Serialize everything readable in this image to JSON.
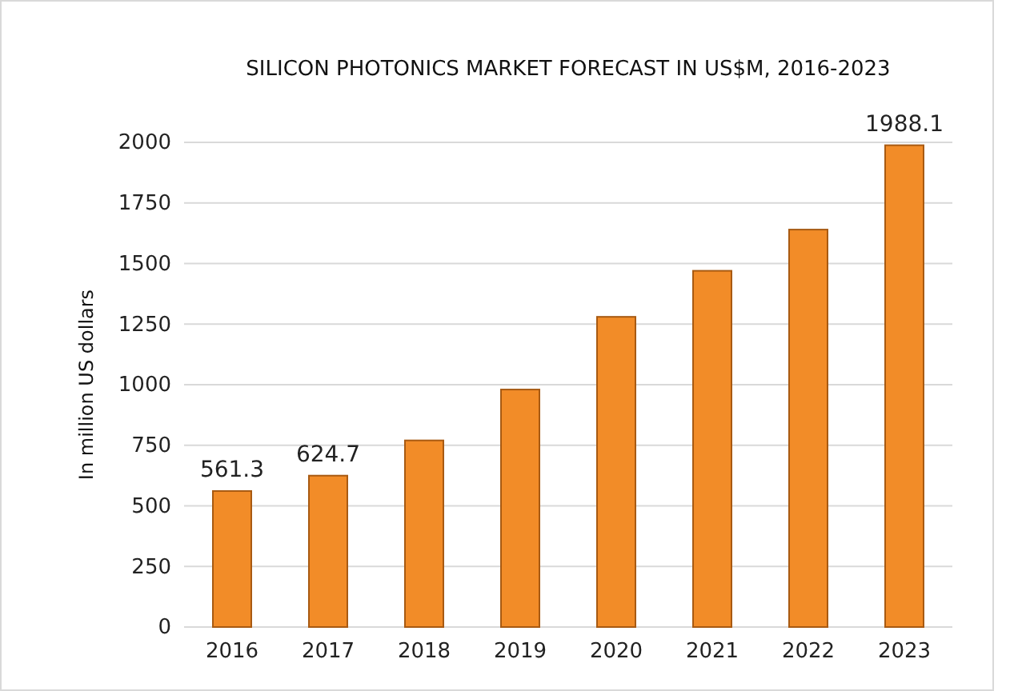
{
  "chart_data": {
    "type": "bar",
    "title": "SILICON PHOTONICS MARKET FORECAST IN US$M, 2016-2023",
    "ylabel": "In million US dollars",
    "categories": [
      "2016",
      "2017",
      "2018",
      "2019",
      "2020",
      "2021",
      "2022",
      "2023"
    ],
    "values": [
      561.3,
      624.7,
      770,
      980,
      1280,
      1470,
      1640,
      1988.1
    ],
    "value_labels": [
      "561.3",
      "624.7",
      null,
      null,
      null,
      null,
      null,
      "1988.1"
    ],
    "color": "#f28c28",
    "ylim": [
      0,
      2000
    ],
    "yticks": [
      0,
      250,
      500,
      750,
      1000,
      1250,
      1500,
      1750,
      2000
    ],
    "grid": "y"
  }
}
